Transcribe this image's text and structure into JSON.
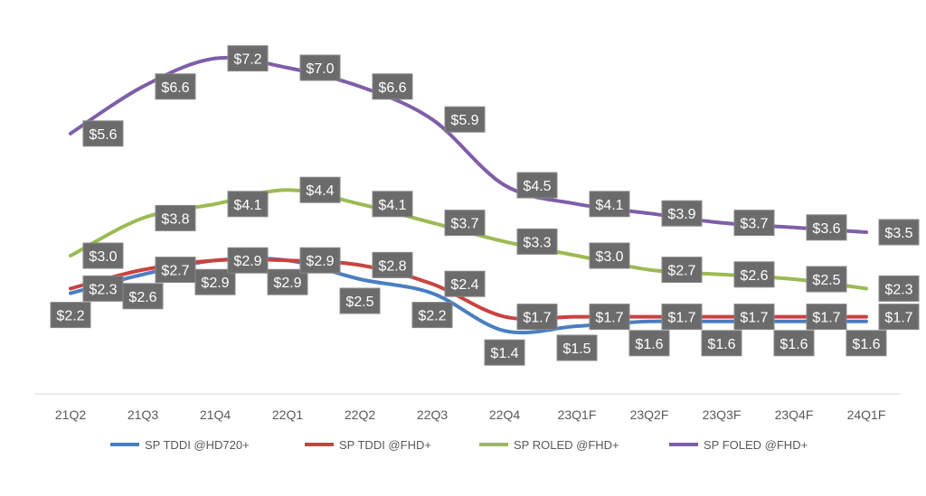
{
  "chart_data": {
    "type": "line",
    "title": "",
    "xlabel": "",
    "ylabel": "",
    "ylim": [
      0,
      7.2
    ],
    "grid": false,
    "legend": "bottom",
    "value_prefix": "$",
    "categories": [
      "21Q2",
      "21Q3",
      "21Q4",
      "22Q1",
      "22Q2",
      "22Q3",
      "22Q4",
      "23Q1F",
      "23Q2F",
      "23Q3F",
      "23Q4F",
      "24Q1F"
    ],
    "series": [
      {
        "name": "SP TDDI @HD720+",
        "color": "#4a7ec2",
        "label_pos": "below",
        "values": [
          2.2,
          2.6,
          2.9,
          2.9,
          2.5,
          2.2,
          1.4,
          1.5,
          1.6,
          1.6,
          1.6,
          1.6
        ]
      },
      {
        "name": "SP TDDI @FHD+",
        "color": "#c94240",
        "label_pos": "right",
        "values": [
          2.3,
          2.7,
          2.9,
          2.9,
          2.8,
          2.4,
          1.7,
          1.7,
          1.7,
          1.7,
          1.7,
          1.7
        ]
      },
      {
        "name": "SP ROLED @FHD+",
        "color": "#9bbb52",
        "label_pos": "right",
        "values": [
          3.0,
          3.8,
          4.1,
          4.4,
          4.1,
          3.7,
          3.3,
          3.0,
          2.7,
          2.6,
          2.5,
          2.3
        ]
      },
      {
        "name": "SP FOLED @FHD+",
        "color": "#7f5ea8",
        "label_pos": "right",
        "values": [
          5.6,
          6.6,
          7.2,
          7.0,
          6.6,
          5.9,
          4.5,
          4.1,
          3.9,
          3.7,
          3.6,
          3.5
        ]
      }
    ]
  }
}
